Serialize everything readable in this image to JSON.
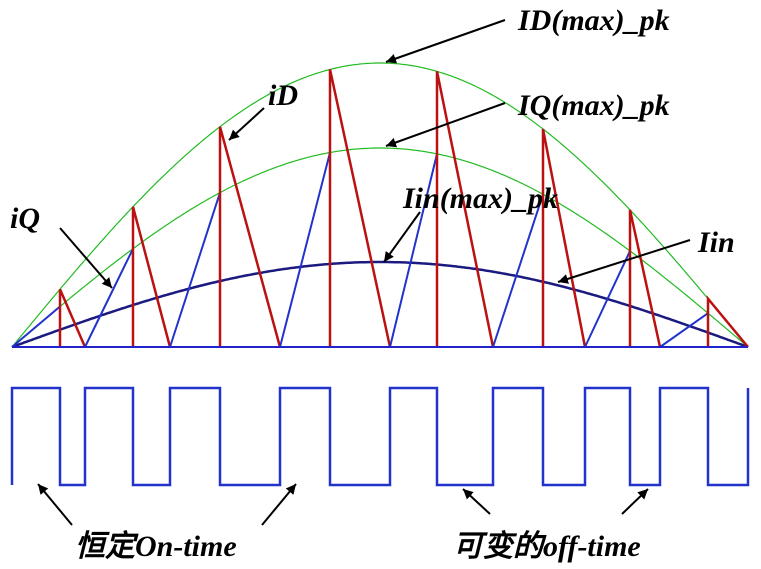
{
  "annotations": [
    "ID(max)_pk",
    "iD",
    "IQ(max)_pk",
    "iQ",
    "Iin(max)_pk",
    "Iin"
  ],
  "bottom_labels": [
    "恒定On-time",
    "可变的off-time"
  ]
}
